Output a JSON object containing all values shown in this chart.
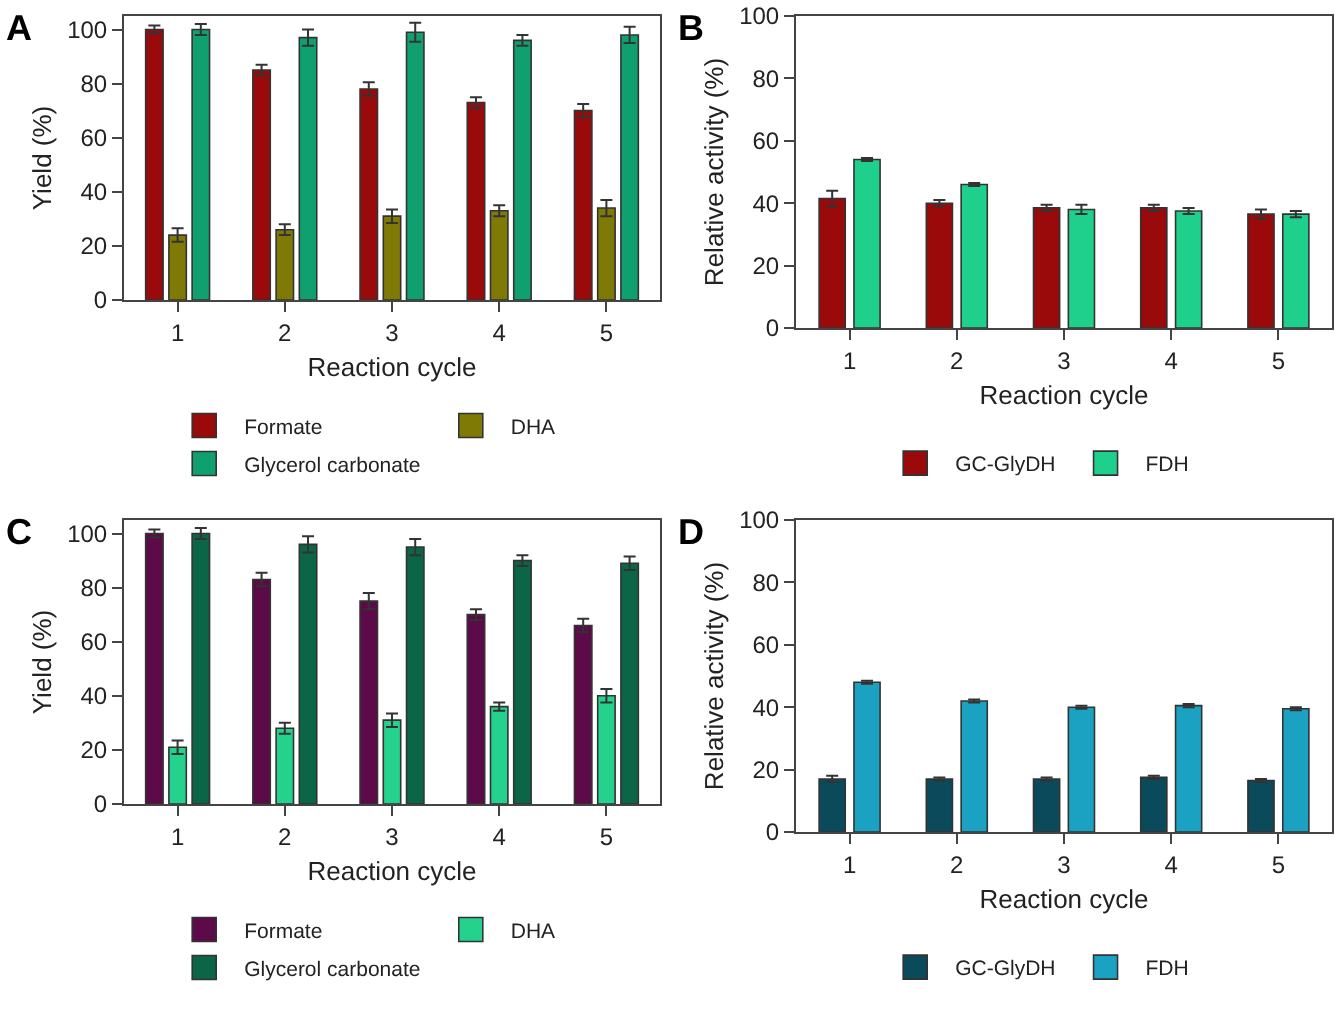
{
  "chart_data": [
    {
      "type": "bar",
      "title": "A",
      "xlabel": "Reaction cycle",
      "ylabel": "Yield (%)",
      "categories": [
        "1",
        "2",
        "3",
        "4",
        "5"
      ],
      "ylim": [
        0,
        105
      ],
      "yticks": [
        0,
        20,
        40,
        60,
        80,
        100
      ],
      "grid": false,
      "legend": "bottom",
      "series": [
        {
          "name": "Formate",
          "color": "#9b0a0a",
          "values": [
            100,
            85,
            78,
            73,
            70
          ],
          "errors": [
            1.5,
            2,
            2.5,
            2,
            2.5
          ]
        },
        {
          "name": "DHA",
          "color": "#7f7a06",
          "values": [
            24,
            26,
            31,
            33,
            34
          ],
          "errors": [
            2.5,
            2,
            2.5,
            2,
            3
          ]
        },
        {
          "name": "Glycerol carbonate",
          "color": "#10a070",
          "values": [
            100,
            97,
            99,
            96,
            98
          ],
          "errors": [
            2,
            3,
            3.5,
            2,
            3
          ]
        }
      ]
    },
    {
      "type": "bar",
      "title": "B",
      "xlabel": "Reaction cycle",
      "ylabel": "Relative activity (%)",
      "categories": [
        "1",
        "2",
        "3",
        "4",
        "5"
      ],
      "ylim": [
        0,
        100
      ],
      "yticks": [
        0,
        20,
        40,
        60,
        80,
        100
      ],
      "grid": false,
      "legend": "bottom",
      "series": [
        {
          "name": "GC-GlyDH",
          "color": "#9b0a0a",
          "values": [
            41.5,
            40,
            38.5,
            38.5,
            36.5
          ],
          "errors": [
            2.5,
            1,
            1,
            1,
            1.5
          ]
        },
        {
          "name": "FDH",
          "color": "#1fd08c",
          "values": [
            54,
            46,
            38,
            37.5,
            36.5
          ],
          "errors": [
            0.5,
            0.5,
            1.5,
            1,
            1
          ]
        }
      ]
    },
    {
      "type": "bar",
      "title": "C",
      "xlabel": "Reaction cycle",
      "ylabel": "Yield (%)",
      "categories": [
        "1",
        "2",
        "3",
        "4",
        "5"
      ],
      "ylim": [
        0,
        105
      ],
      "yticks": [
        0,
        20,
        40,
        60,
        80,
        100
      ],
      "grid": false,
      "legend": "bottom",
      "series": [
        {
          "name": "Formate",
          "color": "#5c0a48",
          "values": [
            100,
            83,
            75,
            70,
            66
          ],
          "errors": [
            1.5,
            2.5,
            3,
            2,
            2.5
          ]
        },
        {
          "name": "DHA",
          "color": "#24d28e",
          "values": [
            21,
            28,
            31,
            36,
            40
          ],
          "errors": [
            2.5,
            2,
            2.5,
            1.5,
            2.5
          ]
        },
        {
          "name": "Glycerol carbonate",
          "color": "#0b6648",
          "values": [
            100,
            96,
            95,
            90,
            89
          ],
          "errors": [
            2,
            3,
            3,
            2,
            2.5
          ]
        }
      ]
    },
    {
      "type": "bar",
      "title": "D",
      "xlabel": "Reaction cycle",
      "ylabel": "Relative activity (%)",
      "categories": [
        "1",
        "2",
        "3",
        "4",
        "5"
      ],
      "ylim": [
        0,
        100
      ],
      "yticks": [
        0,
        20,
        40,
        60,
        80,
        100
      ],
      "grid": false,
      "legend": "bottom",
      "series": [
        {
          "name": "GC-GlyDH",
          "color": "#0b4a5a",
          "values": [
            17,
            17,
            17,
            17.5,
            16.5
          ],
          "errors": [
            1,
            0.5,
            0.5,
            0.5,
            0.5
          ]
        },
        {
          "name": "FDH",
          "color": "#1ba2c2",
          "values": [
            48,
            42,
            40,
            40.5,
            39.5
          ],
          "errors": [
            0.5,
            0.5,
            0.5,
            0.5,
            0.5
          ]
        }
      ]
    }
  ]
}
